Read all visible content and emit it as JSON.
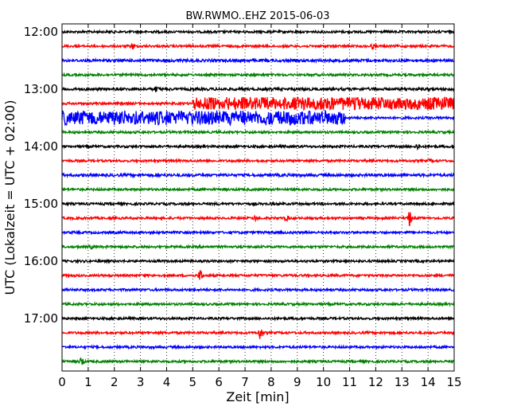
{
  "chart_data": {
    "type": "line",
    "title": "BW.RWMO..EHZ 2015-06-03",
    "xlabel": "Zeit  [min]",
    "ylabel": "UTC (Lokalzeit = UTC + 02:00)",
    "xlim": [
      0,
      15
    ],
    "x_ticks": [
      "0",
      "1",
      "2",
      "3",
      "4",
      "5",
      "6",
      "7",
      "8",
      "9",
      "10",
      "11",
      "12",
      "13",
      "14",
      "15"
    ],
    "y_ticks": [
      {
        "label": "12:00",
        "trace": 0
      },
      {
        "label": "13:00",
        "trace": 4
      },
      {
        "label": "14:00",
        "trace": 8
      },
      {
        "label": "15:00",
        "trace": 12
      },
      {
        "label": "16:00",
        "trace": 16
      },
      {
        "label": "17:00",
        "trace": 20
      }
    ],
    "grid": "vertical-dotted",
    "trace_interval_min": 15,
    "colors": [
      "#000000",
      "#ff0000",
      "#0000ff",
      "#008000"
    ],
    "series": [
      {
        "start": "12:00",
        "amplitude": 1.0,
        "bursts": []
      },
      {
        "start": "12:15",
        "amplitude": 1.0,
        "bursts": [
          {
            "t": 2.7,
            "amp": 4
          },
          {
            "t": 11.9,
            "amp": 3
          }
        ]
      },
      {
        "start": "12:30",
        "amplitude": 1.2,
        "bursts": []
      },
      {
        "start": "12:45",
        "amplitude": 1.0,
        "bursts": []
      },
      {
        "start": "13:00",
        "amplitude": 1.2,
        "bursts": [
          {
            "t": 3.6,
            "amp": 3
          }
        ]
      },
      {
        "start": "13:15",
        "amplitude": 1.0,
        "bursts": [],
        "noise": [
          {
            "from": 5.0,
            "to": 15.0,
            "amp": 7
          }
        ]
      },
      {
        "start": "13:30",
        "amplitude": 1.0,
        "bursts": [],
        "noise": [
          {
            "from": 0.0,
            "to": 10.8,
            "amp": 8
          }
        ]
      },
      {
        "start": "13:45",
        "amplitude": 1.0,
        "bursts": []
      },
      {
        "start": "14:00",
        "amplitude": 1.0,
        "bursts": [
          {
            "t": 13.6,
            "amp": 3
          }
        ]
      },
      {
        "start": "14:15",
        "amplitude": 1.0,
        "bursts": [
          {
            "t": 14.1,
            "amp": 2
          }
        ]
      },
      {
        "start": "14:30",
        "amplitude": 1.2,
        "bursts": []
      },
      {
        "start": "14:45",
        "amplitude": 1.0,
        "bursts": []
      },
      {
        "start": "15:00",
        "amplitude": 1.0,
        "bursts": []
      },
      {
        "start": "15:15",
        "amplitude": 1.0,
        "bursts": [
          {
            "t": 7.4,
            "amp": 3
          },
          {
            "t": 8.6,
            "amp": 3
          },
          {
            "t": 13.3,
            "amp": 10
          }
        ]
      },
      {
        "start": "15:30",
        "amplitude": 1.0,
        "bursts": []
      },
      {
        "start": "15:45",
        "amplitude": 1.0,
        "bursts": [
          {
            "t": 1.1,
            "amp": 2
          }
        ]
      },
      {
        "start": "16:00",
        "amplitude": 1.0,
        "bursts": []
      },
      {
        "start": "16:15",
        "amplitude": 1.0,
        "bursts": [
          {
            "t": 5.3,
            "amp": 8
          }
        ]
      },
      {
        "start": "16:30",
        "amplitude": 1.0,
        "bursts": []
      },
      {
        "start": "16:45",
        "amplitude": 1.0,
        "bursts": []
      },
      {
        "start": "17:00",
        "amplitude": 1.0,
        "bursts": []
      },
      {
        "start": "17:15",
        "amplitude": 1.0,
        "bursts": [
          {
            "t": 7.6,
            "amp": 10
          }
        ]
      },
      {
        "start": "17:30",
        "amplitude": 1.0,
        "bursts": []
      },
      {
        "start": "17:45",
        "amplitude": 1.0,
        "bursts": [
          {
            "t": 0.75,
            "amp": 6
          }
        ]
      }
    ]
  }
}
